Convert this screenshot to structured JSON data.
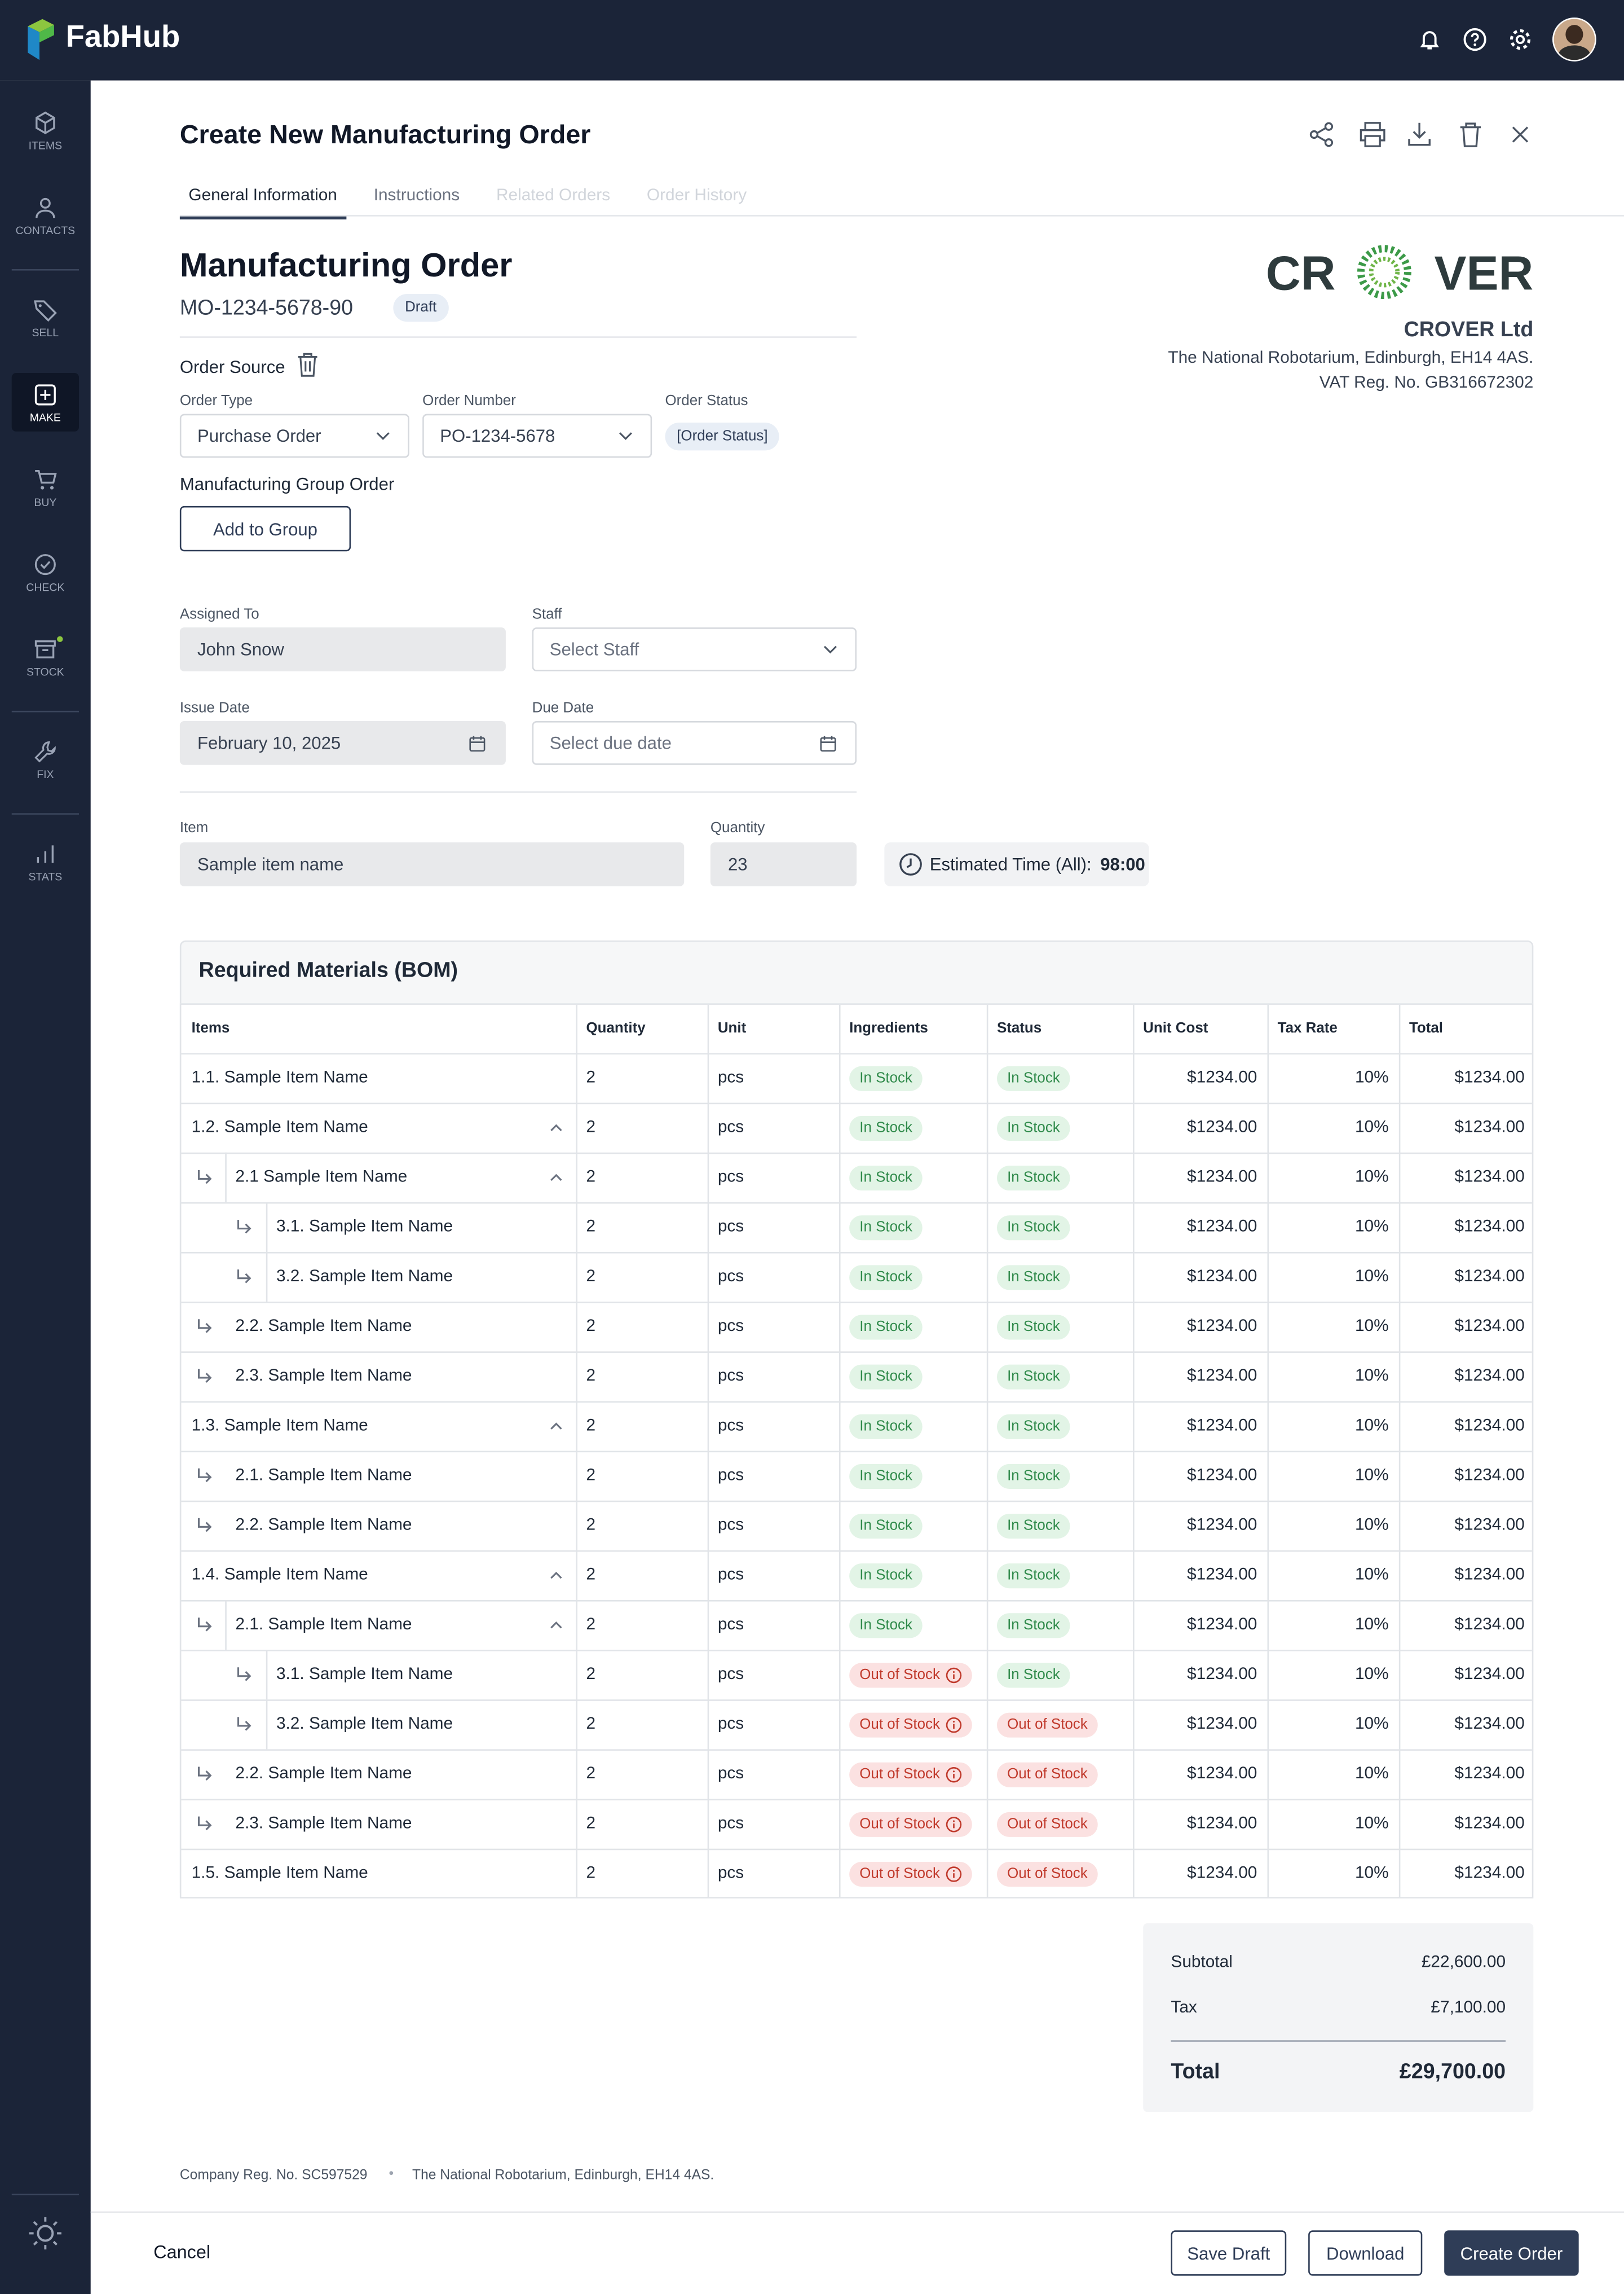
{
  "topbar": {
    "brand": "FabHub"
  },
  "sidebar": {
    "items": [
      {
        "label": "ITEMS"
      },
      {
        "label": "CONTACTS"
      },
      {
        "label": "SELL"
      },
      {
        "label": "MAKE",
        "active": true
      },
      {
        "label": "BUY"
      },
      {
        "label": "CHECK"
      },
      {
        "label": "STOCK",
        "notification": true
      },
      {
        "label": "FIX"
      },
      {
        "label": "STATS"
      }
    ]
  },
  "header": {
    "title": "Create New Manufacturing Order",
    "tabs": [
      {
        "label": "General Information",
        "state": "active"
      },
      {
        "label": "Instructions",
        "state": "enabled"
      },
      {
        "label": "Related Orders",
        "state": "disabled"
      },
      {
        "label": "Order History",
        "state": "disabled"
      }
    ]
  },
  "order": {
    "heading": "Manufacturing Order",
    "number": "MO-1234-5678-90",
    "status": "Draft"
  },
  "company": {
    "logo": [
      "CR",
      "VER"
    ],
    "name": "CROVER Ltd",
    "address": "The National Robotarium, Edinburgh, EH14 4AS.",
    "vat": "VAT Reg. No. GB316672302"
  },
  "source": {
    "label": "Order Source",
    "order_type": {
      "label": "Order Type",
      "value": "Purchase Order"
    },
    "order_number": {
      "label": "Order Number",
      "value": "PO-1234-5678"
    },
    "order_status": {
      "label": "Order Status",
      "value": "[Order Status]"
    },
    "group": {
      "label": "Manufacturing Group Order",
      "button": "Add to Group"
    }
  },
  "assignment": {
    "assigned_to": {
      "label": "Assigned To",
      "value": "John Snow"
    },
    "staff": {
      "label": "Staff",
      "placeholder": "Select Staff"
    },
    "issue_date": {
      "label": "Issue Date",
      "value": "February 10, 2025"
    },
    "due_date": {
      "label": "Due Date",
      "placeholder": "Select due date"
    }
  },
  "item": {
    "item": {
      "label": "Item",
      "value": "Sample item name"
    },
    "quantity": {
      "label": "Quantity",
      "value": 23
    },
    "estimated": {
      "label": "Estimated Time (All):",
      "value": "98:00"
    }
  },
  "bom": {
    "title": "Required Materials (BOM)",
    "columns": [
      "Items",
      "Quantity",
      "Unit",
      "Ingredients",
      "Status",
      "Unit Cost",
      "Tax Rate",
      "Total"
    ],
    "rows": [
      [
        "1.1. Sample Item Name",
        2,
        "pcs",
        "In Stock",
        "In Stock",
        "$1234.00",
        "10%",
        "$1234.00"
      ],
      [
        "1.2. Sample Item Name",
        2,
        "pcs",
        "In Stock",
        "In Stock",
        "$1234.00",
        "10%",
        "$1234.00"
      ],
      [
        "2.1 Sample Item Name",
        2,
        "pcs",
        "In Stock",
        "In Stock",
        "$1234.00",
        "10%",
        "$1234.00"
      ],
      [
        "3.1. Sample Item Name",
        2,
        "pcs",
        "In Stock",
        "In Stock",
        "$1234.00",
        "10%",
        "$1234.00"
      ],
      [
        "3.2. Sample Item Name",
        2,
        "pcs",
        "In Stock",
        "In Stock",
        "$1234.00",
        "10%",
        "$1234.00"
      ],
      [
        "2.2. Sample Item Name",
        2,
        "pcs",
        "In Stock",
        "In Stock",
        "$1234.00",
        "10%",
        "$1234.00"
      ],
      [
        "2.3. Sample Item Name",
        2,
        "pcs",
        "In Stock",
        "In Stock",
        "$1234.00",
        "10%",
        "$1234.00"
      ],
      [
        "1.3. Sample Item Name",
        2,
        "pcs",
        "In Stock",
        "In Stock",
        "$1234.00",
        "10%",
        "$1234.00"
      ],
      [
        "2.1. Sample Item Name",
        2,
        "pcs",
        "In Stock",
        "In Stock",
        "$1234.00",
        "10%",
        "$1234.00"
      ],
      [
        "2.2. Sample Item Name",
        2,
        "pcs",
        "In Stock",
        "In Stock",
        "$1234.00",
        "10%",
        "$1234.00"
      ],
      [
        "1.4. Sample Item Name",
        2,
        "pcs",
        "In Stock",
        "In Stock",
        "$1234.00",
        "10%",
        "$1234.00"
      ],
      [
        "2.1. Sample Item Name",
        2,
        "pcs",
        "In Stock",
        "In Stock",
        "$1234.00",
        "10%",
        "$1234.00"
      ],
      [
        "3.1. Sample Item Name",
        2,
        "pcs",
        "Out of Stock",
        "In Stock",
        "$1234.00",
        "10%",
        "$1234.00"
      ],
      [
        "3.2. Sample Item Name",
        2,
        "pcs",
        "Out of Stock",
        "Out of Stock",
        "$1234.00",
        "10%",
        "$1234.00"
      ],
      [
        "2.2. Sample Item Name",
        2,
        "pcs",
        "Out of Stock",
        "Out of Stock",
        "$1234.00",
        "10%",
        "$1234.00"
      ],
      [
        "2.3. Sample Item Name",
        2,
        "pcs",
        "Out of Stock",
        "Out of Stock",
        "$1234.00",
        "10%",
        "$1234.00"
      ],
      [
        "1.5. Sample Item Name",
        2,
        "pcs",
        "Out of Stock",
        "Out of Stock",
        "$1234.00",
        "10%",
        "$1234.00"
      ]
    ]
  },
  "totals": {
    "subtotal": {
      "label": "Subtotal",
      "value": "£22,600.00"
    },
    "tax": {
      "label": "Tax",
      "value": "£7,100.00"
    },
    "total": {
      "label": "Total",
      "value": "£29,700.00"
    }
  },
  "footer": {
    "reg": "Company Reg. No. SC597529",
    "address": "The National Robotarium, Edinburgh, EH14 4AS."
  },
  "actions": {
    "cancel": "Cancel",
    "save_draft": "Save Draft",
    "download": "Download",
    "create": "Create Order"
  }
}
